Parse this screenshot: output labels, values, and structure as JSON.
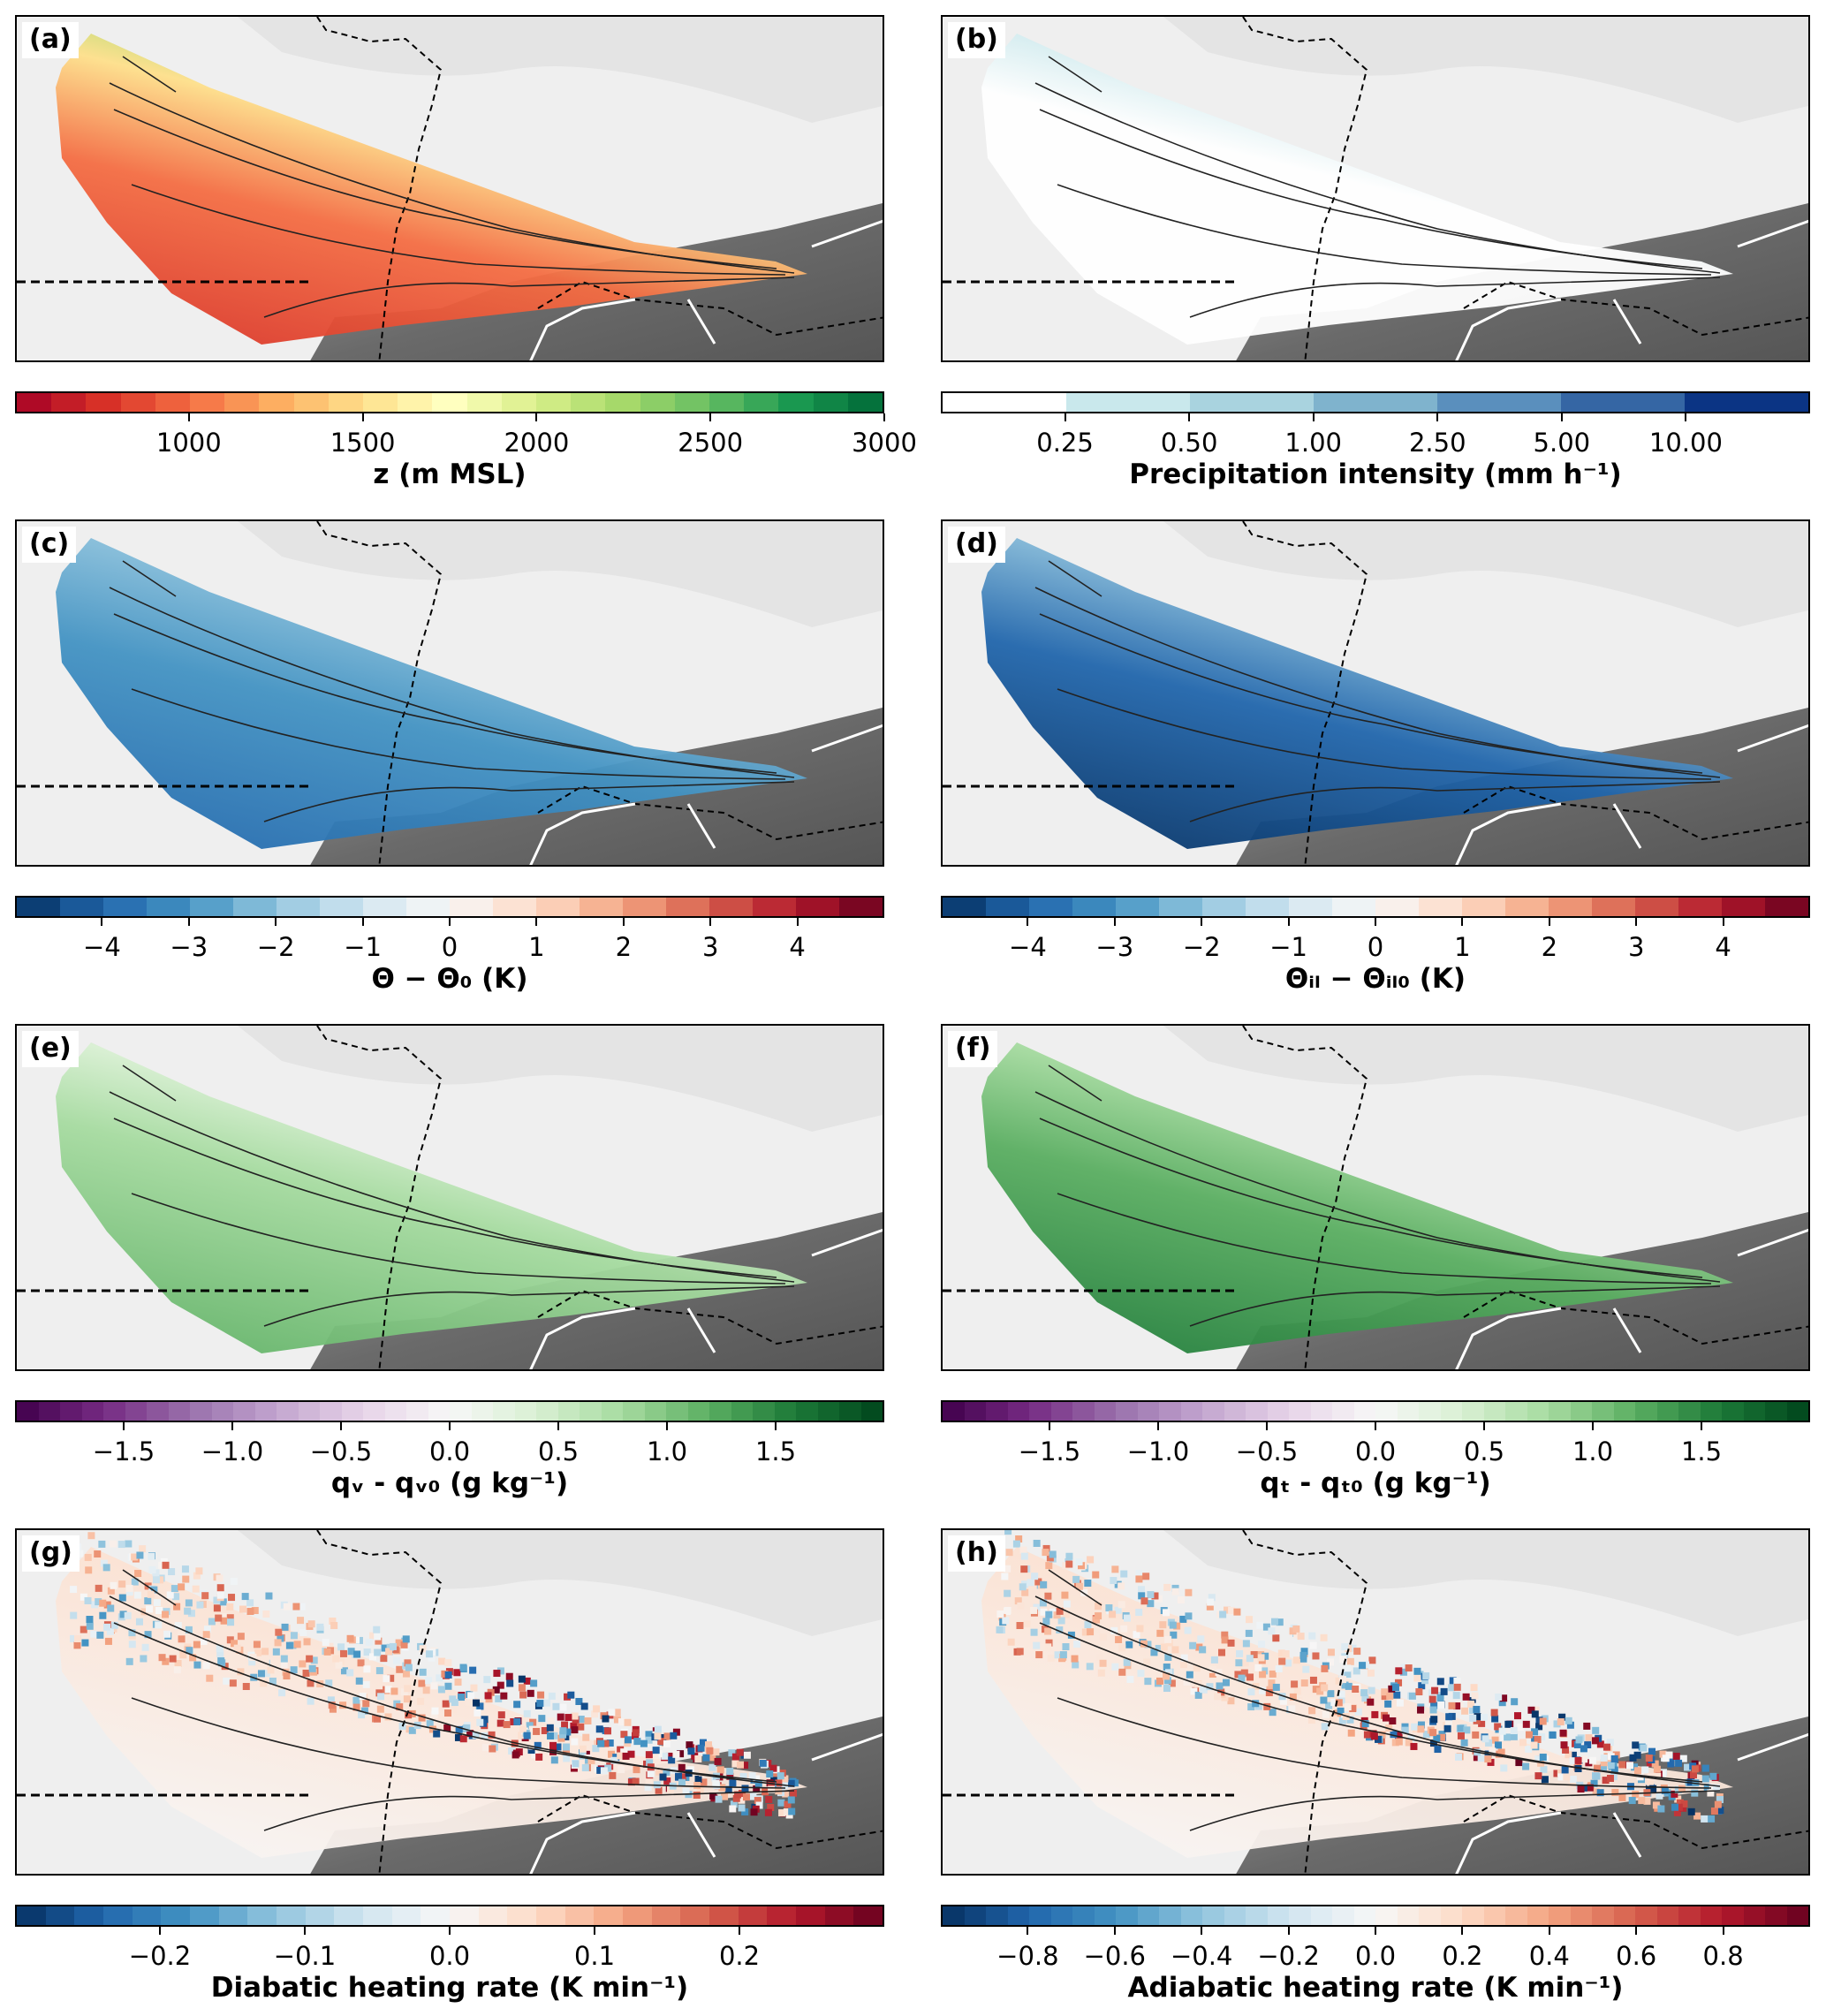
{
  "panels": [
    {
      "label": "(a)",
      "style": "z",
      "colorbar": {
        "label": "z (m MSL)",
        "range": [
          500,
          3000
        ],
        "bins": 25,
        "ticks": [
          1000,
          1500,
          2000,
          2500,
          3000
        ],
        "tick_labels": [
          "1000",
          "1500",
          "2000",
          "2500",
          "3000"
        ],
        "colors": [
          "#a50026",
          "#d73027",
          "#f46d43",
          "#fdae61",
          "#fee08b",
          "#ffffbf",
          "#d9ef8b",
          "#a6d96a",
          "#66bd63",
          "#1a9850",
          "#006837"
        ]
      }
    },
    {
      "label": "(b)",
      "style": "precip",
      "colorbar": {
        "label": "Precipitation intensity (mm h⁻¹)",
        "categorical": true,
        "ticks_index": [
          1,
          2,
          3,
          4,
          5,
          6
        ],
        "tick_labels": [
          "0.25",
          "0.50",
          "1.00",
          "2.50",
          "5.00",
          "10.00"
        ],
        "bin_colors": [
          "#ffffff",
          "#c9e8ec",
          "#a9d3df",
          "#7fb3cd",
          "#5a8fbd",
          "#3566a4",
          "#0b3484"
        ]
      }
    },
    {
      "label": "(c)",
      "style": "theta",
      "colorbar": {
        "label": "Θ − Θ₀ (K)",
        "range": [
          -5,
          5
        ],
        "bins": 20,
        "ticks": [
          -4,
          -3,
          -2,
          -1,
          0,
          1,
          2,
          3,
          4
        ],
        "tick_labels": [
          "−4",
          "−3",
          "−2",
          "−1",
          "0",
          "1",
          "2",
          "3",
          "4"
        ],
        "colors": [
          "#053061",
          "#2166ac",
          "#4393c3",
          "#92c5de",
          "#d1e5f0",
          "#f7f7f7",
          "#fddbc7",
          "#f4a582",
          "#d6604d",
          "#b2182b",
          "#67001f"
        ]
      }
    },
    {
      "label": "(d)",
      "style": "thetail",
      "colorbar": {
        "label": "Θᵢₗ − Θᵢₗ₀ (K)",
        "range": [
          -5,
          5
        ],
        "bins": 20,
        "ticks": [
          -4,
          -3,
          -2,
          -1,
          0,
          1,
          2,
          3,
          4
        ],
        "tick_labels": [
          "−4",
          "−3",
          "−2",
          "−1",
          "0",
          "1",
          "2",
          "3",
          "4"
        ],
        "colors": [
          "#053061",
          "#2166ac",
          "#4393c3",
          "#92c5de",
          "#d1e5f0",
          "#f7f7f7",
          "#fddbc7",
          "#f4a582",
          "#d6604d",
          "#b2182b",
          "#67001f"
        ]
      }
    },
    {
      "label": "(e)",
      "style": "qv",
      "colorbar": {
        "label": "qᵥ - qᵥ₀ (g kg⁻¹)",
        "range": [
          -2,
          2
        ],
        "bins": 40,
        "ticks": [
          -1.5,
          -1.0,
          -0.5,
          0.0,
          0.5,
          1.0,
          1.5
        ],
        "tick_labels": [
          "−1.5",
          "−1.0",
          "−0.5",
          "0.0",
          "0.5",
          "1.0",
          "1.5"
        ],
        "colors": [
          "#40004b",
          "#762a83",
          "#9970ab",
          "#c2a5cf",
          "#e7d4e8",
          "#f7f7f7",
          "#d9f0d3",
          "#a6dba0",
          "#5aae61",
          "#1b7837",
          "#00441b"
        ]
      }
    },
    {
      "label": "(f)",
      "style": "qt",
      "colorbar": {
        "label": "qₜ - qₜ₀ (g kg⁻¹)",
        "range": [
          -2,
          2
        ],
        "bins": 40,
        "ticks": [
          -1.5,
          -1.0,
          -0.5,
          0.0,
          0.5,
          1.0,
          1.5
        ],
        "tick_labels": [
          "−1.5",
          "−1.0",
          "−0.5",
          "0.0",
          "0.5",
          "1.0",
          "1.5"
        ],
        "colors": [
          "#40004b",
          "#762a83",
          "#9970ab",
          "#c2a5cf",
          "#e7d4e8",
          "#f7f7f7",
          "#d9f0d3",
          "#a6dba0",
          "#5aae61",
          "#1b7837",
          "#00441b"
        ]
      }
    },
    {
      "label": "(g)",
      "style": "diab",
      "colorbar": {
        "label": "Diabatic heating rate (K min⁻¹)",
        "range": [
          -0.3,
          0.3
        ],
        "bins": 30,
        "ticks": [
          -0.2,
          -0.1,
          0.0,
          0.1,
          0.2
        ],
        "tick_labels": [
          "−0.2",
          "−0.1",
          "0.0",
          "0.1",
          "0.2"
        ],
        "colors": [
          "#053061",
          "#2166ac",
          "#4393c3",
          "#92c5de",
          "#d1e5f0",
          "#f7f7f7",
          "#fddbc7",
          "#f4a582",
          "#d6604d",
          "#b2182b",
          "#67001f"
        ]
      }
    },
    {
      "label": "(h)",
      "style": "adiab",
      "colorbar": {
        "label": "Adiabatic heating rate (K min⁻¹)",
        "range": [
          -1,
          1
        ],
        "bins": 40,
        "ticks": [
          -0.8,
          -0.6,
          -0.4,
          -0.2,
          0.0,
          0.2,
          0.4,
          0.6,
          0.8
        ],
        "tick_labels": [
          "−0.8",
          "−0.6",
          "−0.4",
          "−0.2",
          "0.0",
          "0.2",
          "0.4",
          "0.6",
          "0.8"
        ],
        "colors": [
          "#053061",
          "#2166ac",
          "#4393c3",
          "#92c5de",
          "#d1e5f0",
          "#f7f7f7",
          "#fddbc7",
          "#f4a582",
          "#d6604d",
          "#b2182b",
          "#67001f"
        ]
      }
    }
  ]
}
